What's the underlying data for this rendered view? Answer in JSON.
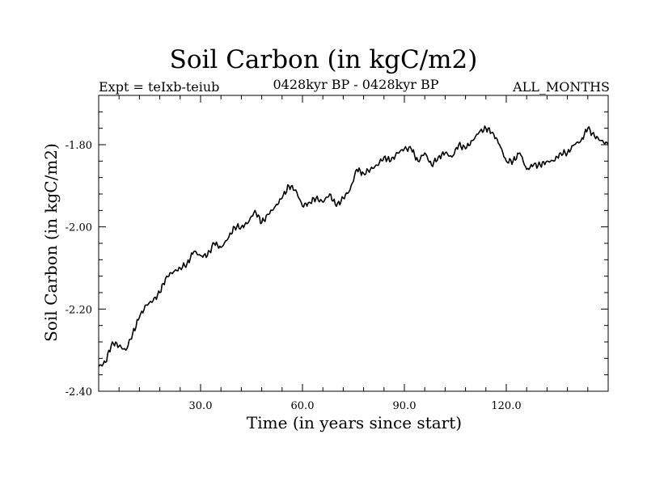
{
  "chart_data": {
    "type": "line",
    "title": "Soil Carbon (in kgC/m2)",
    "subtitle_left": "Expt = teIxb-teiub",
    "subtitle_center": "0428kyr BP - 0428kyr BP",
    "subtitle_right": "ALL_MONTHS",
    "xlabel": "Time (in years since start)",
    "ylabel": "Soil Carbon (in kgC/m2)",
    "xlim": [
      0,
      150
    ],
    "ylim": [
      -2.4,
      -1.68
    ],
    "xticks": [
      30,
      60,
      90,
      120
    ],
    "xtick_labels": [
      "30.0",
      "60.0",
      "90.0",
      "120.0"
    ],
    "yticks": [
      -2.4,
      -2.2,
      -2.0,
      -1.8
    ],
    "ytick_labels": [
      "-2.40",
      "-2.20",
      "-2.00",
      "-1.80"
    ],
    "grid": false,
    "series": [
      {
        "name": "Soil Carbon",
        "x": [
          0,
          2,
          4,
          6,
          8,
          10,
          12,
          14,
          16,
          18,
          20,
          22,
          24,
          26,
          28,
          30,
          32,
          34,
          36,
          38,
          40,
          42,
          44,
          46,
          48,
          50,
          52,
          54,
          56,
          58,
          60,
          62,
          64,
          66,
          68,
          70,
          72,
          74,
          76,
          78,
          80,
          82,
          84,
          86,
          88,
          90,
          92,
          94,
          96,
          98,
          100,
          102,
          104,
          106,
          108,
          110,
          112,
          114,
          116,
          118,
          120,
          122,
          124,
          126,
          128,
          130,
          132,
          134,
          136,
          138,
          140,
          142,
          144,
          146,
          148,
          150
        ],
        "values": [
          -2.34,
          -2.33,
          -2.28,
          -2.29,
          -2.3,
          -2.26,
          -2.22,
          -2.19,
          -2.18,
          -2.16,
          -2.12,
          -2.11,
          -2.1,
          -2.09,
          -2.06,
          -2.07,
          -2.07,
          -2.04,
          -2.05,
          -2.03,
          -2.0,
          -2.0,
          -1.99,
          -1.96,
          -1.99,
          -1.97,
          -1.95,
          -1.93,
          -1.9,
          -1.91,
          -1.95,
          -1.94,
          -1.93,
          -1.94,
          -1.92,
          -1.95,
          -1.93,
          -1.91,
          -1.86,
          -1.87,
          -1.86,
          -1.85,
          -1.83,
          -1.84,
          -1.82,
          -1.81,
          -1.81,
          -1.84,
          -1.82,
          -1.85,
          -1.83,
          -1.82,
          -1.83,
          -1.8,
          -1.81,
          -1.79,
          -1.77,
          -1.76,
          -1.77,
          -1.8,
          -1.84,
          -1.84,
          -1.82,
          -1.86,
          -1.85,
          -1.85,
          -1.84,
          -1.84,
          -1.82,
          -1.82,
          -1.8,
          -1.79,
          -1.76,
          -1.78,
          -1.79,
          -1.8
        ]
      }
    ]
  }
}
